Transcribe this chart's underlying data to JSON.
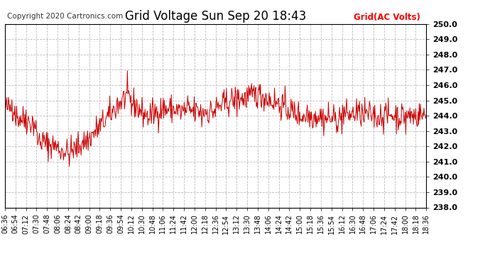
{
  "title": "Grid Voltage Sun Sep 20 18:43",
  "copyright": "Copyright 2020 Cartronics.com",
  "legend_label": "Grid(AC Volts)",
  "legend_color": "#ff0000",
  "line_color": "#cc0000",
  "background_color": "#ffffff",
  "ylim": [
    238.0,
    250.0
  ],
  "yticks": [
    238.0,
    239.0,
    240.0,
    241.0,
    242.0,
    243.0,
    244.0,
    245.0,
    246.0,
    247.0,
    248.0,
    249.0,
    250.0
  ],
  "xtick_labels": [
    "06:36",
    "06:54",
    "07:12",
    "07:30",
    "07:48",
    "08:06",
    "08:24",
    "08:42",
    "09:00",
    "09:18",
    "09:36",
    "09:54",
    "10:12",
    "10:30",
    "10:48",
    "11:06",
    "11:24",
    "11:42",
    "12:00",
    "12:18",
    "12:36",
    "12:54",
    "13:12",
    "13:30",
    "13:48",
    "14:06",
    "14:24",
    "14:42",
    "15:00",
    "15:18",
    "15:36",
    "15:54",
    "16:12",
    "16:30",
    "16:48",
    "17:06",
    "17:24",
    "17:42",
    "18:00",
    "18:18",
    "18:36"
  ],
  "grid_color": "#bbbbbb",
  "grid_style": "--",
  "title_fontsize": 12,
  "tick_fontsize": 7,
  "ytick_fontsize": 8,
  "copyright_fontsize": 7.5,
  "legend_fontsize": 8.5
}
